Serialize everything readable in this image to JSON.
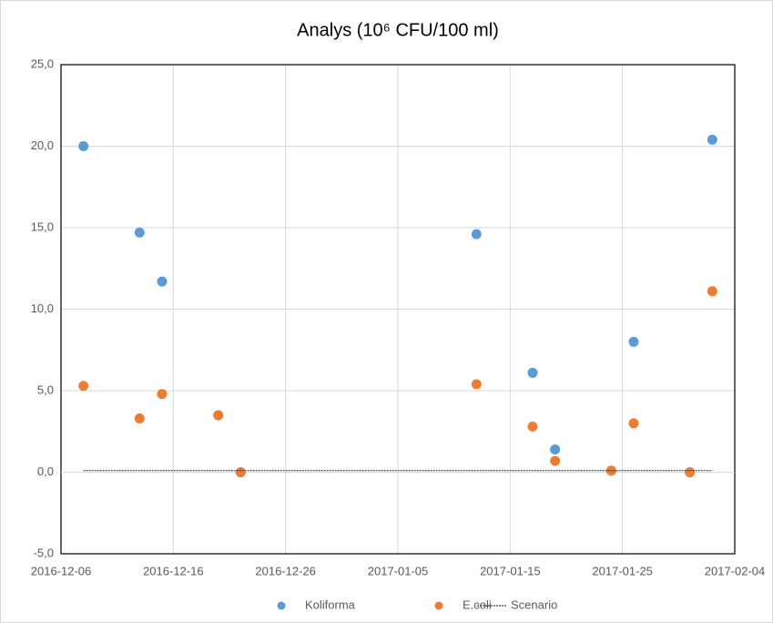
{
  "chart_data": {
    "type": "scatter",
    "title": "Analys (10⁶ CFU/100 ml)",
    "series": [
      {
        "name": "Koliforma",
        "color": "#5b9bd5",
        "x": [
          "2016-12-08",
          "2016-12-13",
          "2016-12-15",
          "2016-12-20",
          "2016-12-22",
          "2017-01-12",
          "2017-01-17",
          "2017-01-19",
          "2017-01-24",
          "2017-01-26",
          "2017-01-31",
          "2017-02-02"
        ],
        "values": [
          20.0,
          14.7,
          11.7,
          3.5,
          0.0,
          14.6,
          6.1,
          1.4,
          0.1,
          8.0,
          0.0,
          20.4
        ]
      },
      {
        "name": "E.coli",
        "color": "#ed7d31",
        "x": [
          "2016-12-08",
          "2016-12-13",
          "2016-12-15",
          "2016-12-20",
          "2016-12-22",
          "2017-01-12",
          "2017-01-17",
          "2017-01-19",
          "2017-01-24",
          "2017-01-26",
          "2017-01-31",
          "2017-02-02"
        ],
        "values": [
          5.3,
          3.3,
          4.8,
          3.5,
          0.0,
          5.4,
          2.8,
          0.7,
          0.1,
          3.0,
          0.0,
          11.1
        ]
      },
      {
        "name": "Scenario",
        "color": "#404040",
        "line": "dotted",
        "x": [
          "2016-12-08",
          "2017-02-02"
        ],
        "values": [
          0.1,
          0.1
        ]
      }
    ],
    "xlim": [
      "2016-12-06",
      "2017-02-04"
    ],
    "xticks": [
      "2016-12-06",
      "2016-12-16",
      "2016-12-26",
      "2017-01-05",
      "2017-01-15",
      "2017-01-25",
      "2017-02-04"
    ],
    "ylim": [
      -5,
      25
    ],
    "yticks": [
      {
        "value": -5,
        "label": "-5,0"
      },
      {
        "value": 0,
        "label": "0,0"
      },
      {
        "value": 5,
        "label": "5,0"
      },
      {
        "value": 10,
        "label": "10,0"
      },
      {
        "value": 15,
        "label": "15,0"
      },
      {
        "value": 20,
        "label": "20,0"
      },
      {
        "value": 25,
        "label": "25,0"
      }
    ],
    "grid": true,
    "legend": "bottom"
  }
}
